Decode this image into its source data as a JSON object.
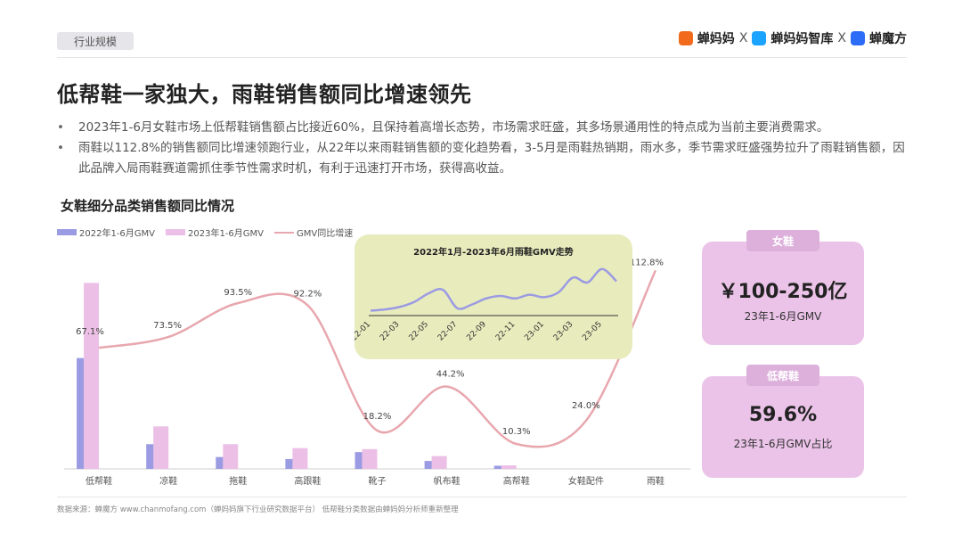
{
  "header": {
    "tag": "行业规模",
    "brands": [
      "蝉妈妈",
      "蝉妈妈智库",
      "蝉魔方"
    ],
    "separator": "X",
    "colors": {
      "brand1": "#f26b1d",
      "brand2": "#1aa3ff",
      "brand3": "#2d6cf6"
    }
  },
  "title": "低帮鞋一家独大，雨鞋销售额同比增速领先",
  "bullets": [
    "2023年1-6月女鞋市场上低帮鞋销售额占比接近60%，且保持着高增长态势，市场需求旺盛，其多场景通用性的特点成为当前主要消费需求。",
    "雨鞋以112.8%的销售额同比增速领跑行业，从22年以来雨鞋销售额的变化趋势看，3-5月是雨鞋热销期，雨水多，季节需求旺盛强势拉升了雨鞋销售额，因此品牌入局雨鞋赛道需抓住季节性需求时机，有利于迅速打开市场，获得高收益。"
  ],
  "chart_title": "女鞋细分品类销售额同比情况",
  "chart_data": [
    {
      "type": "bar",
      "categories": [
        "低帮鞋",
        "凉鞋",
        "拖鞋",
        "高跟鞋",
        "靴子",
        "帆布鞋",
        "高帮鞋",
        "女鞋配件",
        "雨鞋"
      ],
      "series": [
        {
          "name": "2022年1-6月GMV",
          "type": "bar",
          "color": "#9b9be3",
          "values": [
            56,
            12.5,
            6,
            5,
            8.5,
            4,
            1.6,
            0,
            0
          ]
        },
        {
          "name": "2023年1-6月GMV",
          "type": "bar",
          "color": "#ecc0e6",
          "values": [
            94,
            21.5,
            12.5,
            10.5,
            10,
            6.5,
            1.8,
            0,
            0
          ]
        },
        {
          "name": "GMV同比增速",
          "type": "line",
          "color": "#e8a7ae",
          "values": [
            67.1,
            73.5,
            93.5,
            92.2,
            18.2,
            44.2,
            10.3,
            24.0,
            112.8
          ],
          "labels": [
            "67.1%",
            "73.5%",
            "93.5%",
            "92.2%",
            "18.2%",
            "44.2%",
            "10.3%",
            "24.0%",
            "112.8%"
          ]
        }
      ],
      "grid": false,
      "legend_position": "top-left"
    },
    {
      "type": "line",
      "title": "2022年1月-2023年6月雨鞋GMV走势",
      "x": [
        "22-01",
        "22-02",
        "22-03",
        "22-04",
        "22-05",
        "22-06",
        "22-07",
        "22-08",
        "22-09",
        "22-10",
        "22-11",
        "22-12",
        "23-01",
        "23-02",
        "23-03",
        "23-04",
        "23-05",
        "23-06"
      ],
      "tick_labels": [
        "22-01",
        "22-03",
        "22-05",
        "22-07",
        "22-09",
        "22-11",
        "23-01",
        "23-03",
        "23-05"
      ],
      "series": [
        {
          "color": "#9b9be3",
          "values": [
            14,
            15,
            17,
            21,
            28,
            31,
            16,
            19,
            24,
            26,
            24,
            27,
            25,
            29,
            41,
            37,
            48,
            38
          ]
        }
      ],
      "grid": false
    }
  ],
  "cards": [
    {
      "head": "女鞋",
      "value": "￥100-250亿",
      "sub": "23年1-6月GMV"
    },
    {
      "head": "低帮鞋",
      "value": "59.6%",
      "sub": "23年1-6月GMV占比"
    }
  ],
  "source": "数据来源：蝉魔方  www.chanmofang.com（蝉妈妈旗下行业研究数据平台）    低帮鞋分类数据由蝉妈妈分析师重新整理"
}
